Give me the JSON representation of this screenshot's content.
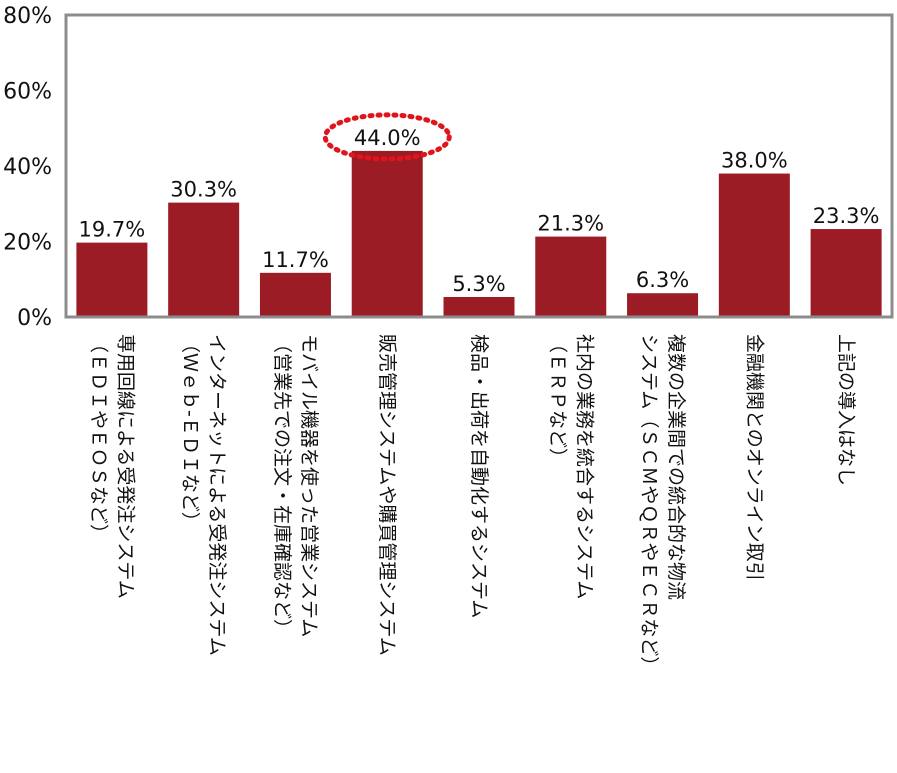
{
  "chart_data": {
    "type": "bar",
    "categories": [
      [
        "専用回線による受発注システム",
        "（ＥＤＩやＥＯＳなど）"
      ],
      [
        "インターネットによる受発注システム",
        "（Ｗｅｂ-ＥＤＩなど）"
      ],
      [
        "モバイル機器を使った営業システム",
        "（営業先での注文・在庫確認など）"
      ],
      [
        "販売管理システムや購買管理システム"
      ],
      [
        "検品・出荷を自動化するシステム"
      ],
      [
        "社内の業務を統合するシステム",
        "（ＥＲＰなど）"
      ],
      [
        "複数の企業間での統合的な物流",
        "システム（ＳＣＭやＱＲやＥＣＲなど）"
      ],
      [
        "金融機関とのオンライン取引"
      ],
      [
        "上記の導入はなし"
      ]
    ],
    "values": [
      19.7,
      30.3,
      11.7,
      44.0,
      5.3,
      21.3,
      6.3,
      38.0,
      23.3
    ],
    "value_labels": [
      "19.7%",
      "30.3%",
      "11.7%",
      "44.0%",
      "5.3%",
      "21.3%",
      "6.3%",
      "38.0%",
      "23.3%"
    ],
    "y_ticks": [
      "0%",
      "20%",
      "40%",
      "60%",
      "80%"
    ],
    "ylim": [
      0,
      80
    ],
    "highlighted_index": 3,
    "bar_color": "#9b1c24",
    "highlight_color": "#e0141c",
    "frame_color": "#8c8c8c"
  }
}
